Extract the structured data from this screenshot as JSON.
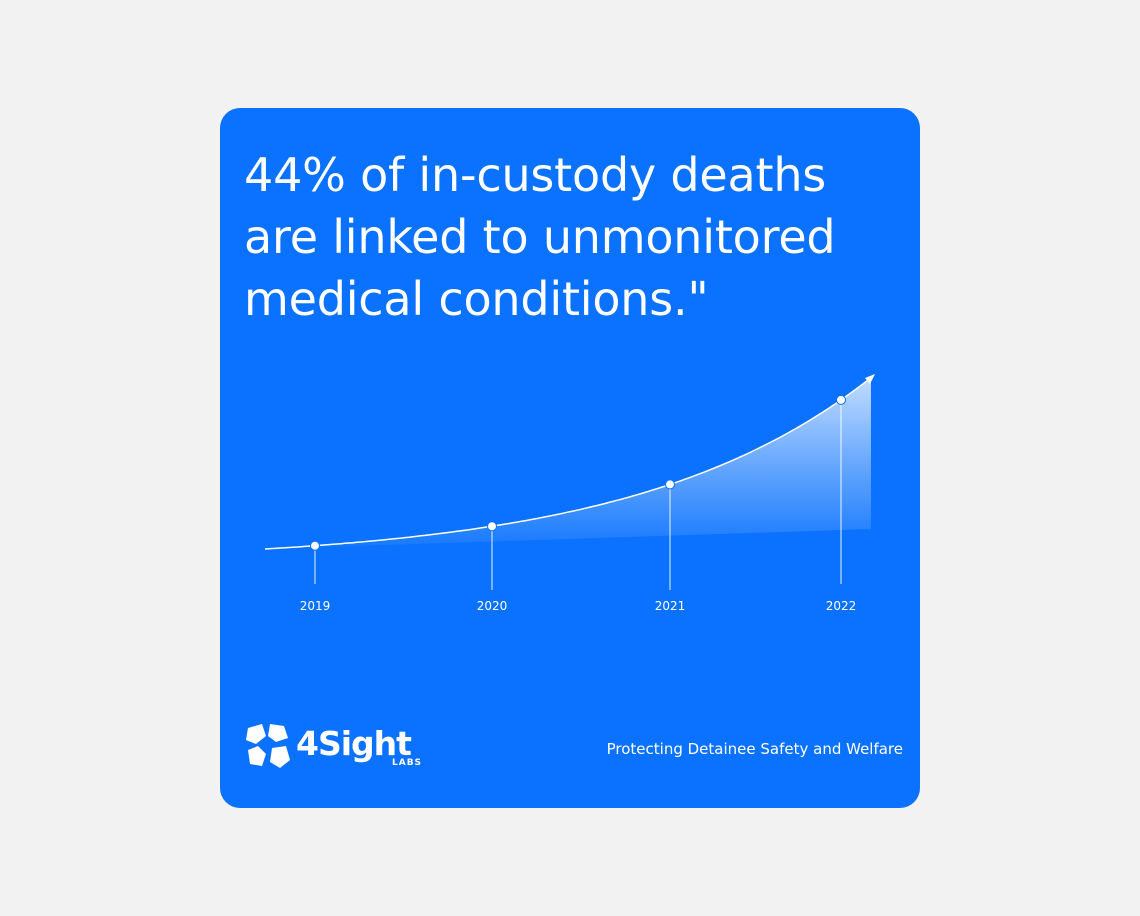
{
  "colors": {
    "card_bg": "#0a72fe",
    "page_bg": "#f2f2f2",
    "white": "#ffffff"
  },
  "headline": "44% of in-custody deaths are linked to unmonitored medical conditions.\"",
  "brand": {
    "name": "4Sight",
    "sub": "LABS",
    "icon": "hexagon-cluster-logo-icon"
  },
  "tagline": "Protecting Detainee Safety and Welfare",
  "chart_data": {
    "type": "area",
    "categories": [
      "2019",
      "2020",
      "2021",
      "2022"
    ],
    "grid": false,
    "legend": "none",
    "trend": "increasing"
  }
}
